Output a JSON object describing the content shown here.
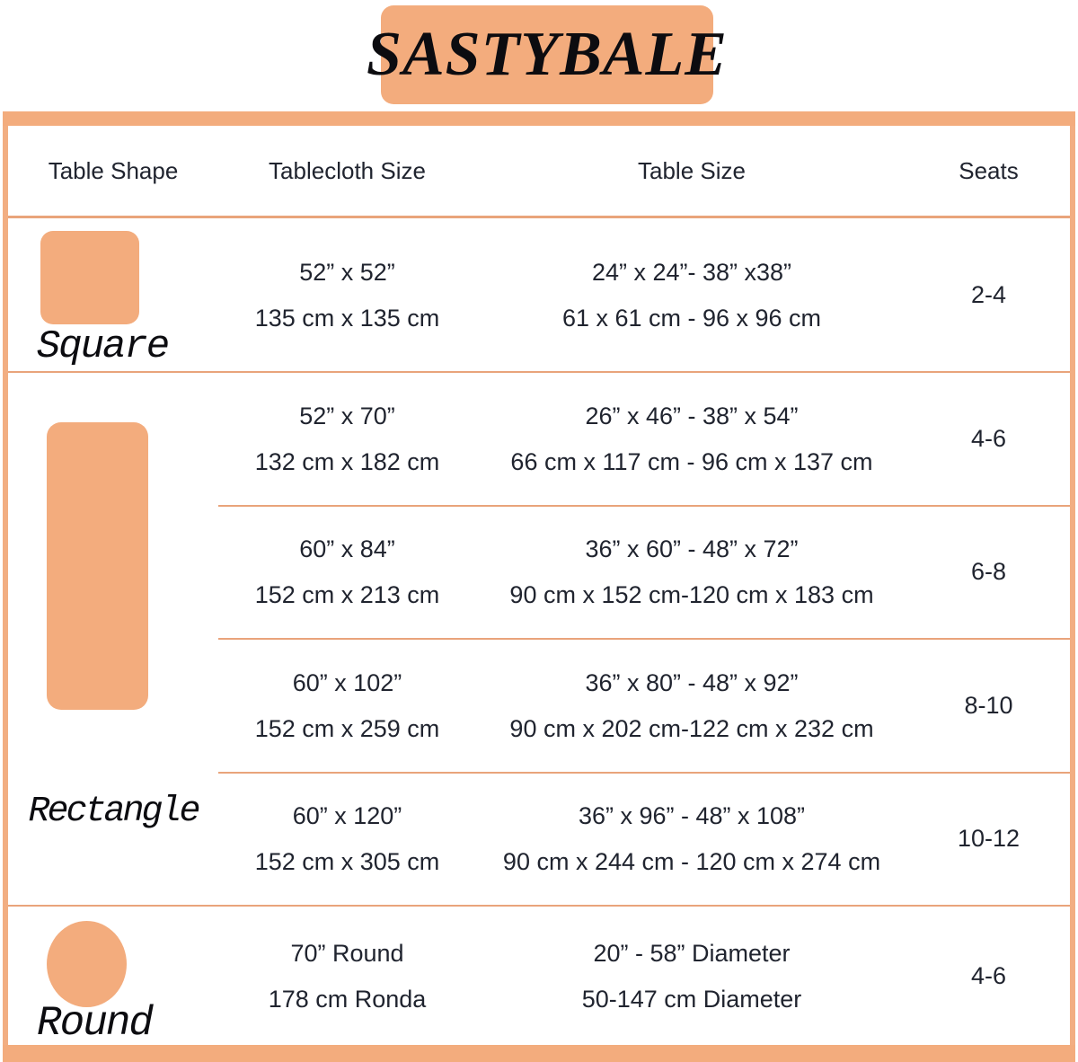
{
  "brand": {
    "logo": "SASTYBALE"
  },
  "colors": {
    "accent": "#f3ac7d",
    "divider": "#e9a47b",
    "border": "#f2ae82",
    "text": "#20242f",
    "label": "#0c0c10"
  },
  "table": {
    "headers": {
      "shape": "Table Shape",
      "tablecloth": "Tablecloth Size",
      "table_size": "Table Size",
      "seats": "Seats"
    },
    "sections": [
      {
        "shape": "Square",
        "rows": [
          {
            "tablecloth_in": "52” x 52”",
            "tablecloth_cm": "135 cm x 135 cm",
            "table_in": "24” x 24”- 38” x38”",
            "table_cm": "61 x 61 cm - 96 x 96 cm",
            "seats": "2-4"
          }
        ]
      },
      {
        "shape": "Rectangle",
        "rows": [
          {
            "tablecloth_in": "52” x 70”",
            "tablecloth_cm": "132 cm x 182 cm",
            "table_in": "26” x 46” - 38” x 54”",
            "table_cm": "66 cm x 117 cm - 96 cm x 137 cm",
            "seats": "4-6"
          },
          {
            "tablecloth_in": "60” x 84”",
            "tablecloth_cm": "152 cm x 213 cm",
            "table_in": "36” x 60” - 48” x 72”",
            "table_cm": "90 cm x 152 cm-120 cm x 183 cm",
            "seats": "6-8"
          },
          {
            "tablecloth_in": "60” x 102”",
            "tablecloth_cm": "152 cm x 259 cm",
            "table_in": "36” x 80” - 48” x 92”",
            "table_cm": "90 cm x 202 cm-122 cm x 232 cm",
            "seats": "8-10"
          },
          {
            "tablecloth_in": "60” x 120”",
            "tablecloth_cm": "152 cm x 305 cm",
            "table_in": "36” x 96” - 48” x 108”",
            "table_cm": "90 cm x 244 cm - 120 cm x 274 cm",
            "seats": "10-12"
          }
        ]
      },
      {
        "shape": "Round",
        "rows": [
          {
            "tablecloth_in": "70” Round",
            "tablecloth_cm": "178 cm Ronda",
            "table_in": "20” - 58” Diameter",
            "table_cm": "50-147 cm Diameter",
            "seats": "4-6"
          }
        ]
      }
    ]
  },
  "chart_data": {
    "type": "table",
    "title": "SASTYBALE",
    "columns": [
      "Table Shape",
      "Tablecloth Size",
      "Table Size",
      "Seats"
    ],
    "rows": [
      [
        "Square",
        "52” x 52” (135 cm x 135 cm)",
        "24” x 24”- 38” x38” (61 x 61 cm - 96 x 96 cm)",
        "2-4"
      ],
      [
        "Rectangle",
        "52” x 70” (132 cm x 182 cm)",
        "26” x 46” - 38” x 54” (66 cm x 117 cm - 96 cm x 137 cm)",
        "4-6"
      ],
      [
        "Rectangle",
        "60” x 84” (152 cm x 213 cm)",
        "36” x 60” - 48” x 72” (90 cm x 152 cm-120 cm x 183 cm)",
        "6-8"
      ],
      [
        "Rectangle",
        "60” x 102” (152 cm x 259 cm)",
        "36” x 80” - 48” x 92” (90 cm x 202 cm-122 cm x 232 cm)",
        "8-10"
      ],
      [
        "Rectangle",
        "60” x 120” (152 cm x 305 cm)",
        "36” x 96” - 48” x 108” (90 cm x 244 cm - 120 cm x 274 cm)",
        "10-12"
      ],
      [
        "Round",
        "70” Round (178 cm Ronda)",
        "20” - 58” Diameter (50-147 cm Diameter)",
        "4-6"
      ]
    ]
  }
}
